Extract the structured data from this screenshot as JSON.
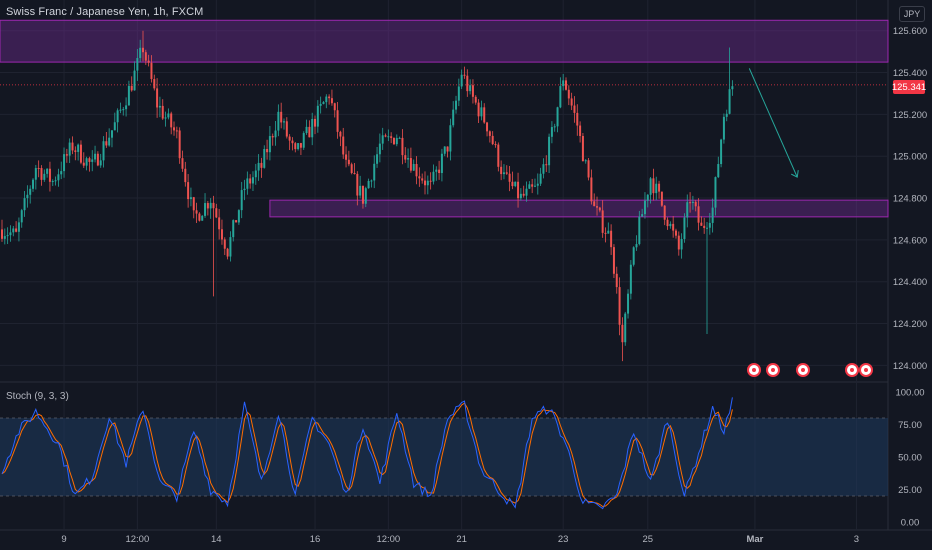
{
  "header": {
    "title": "Swiss Franc / Japanese Yen, 1h, FXCM",
    "currency": "JPY",
    "last_price": "125.341"
  },
  "indicator": {
    "label": "Stoch (9, 3, 3)"
  },
  "colors": {
    "background": "#131722",
    "up_candle": "#26a69a",
    "down_candle": "#ef5350",
    "zone_fill": "#6a2a8c",
    "zone_border": "#9c27b0",
    "stoch_k": "#2962ff",
    "stoch_d": "#ff6d00",
    "stoch_band": "#1e3a5f",
    "arrow": "#26a69a",
    "last_price": "#f23645"
  },
  "chart_data": [
    {
      "type": "candlestick",
      "title": "Swiss Franc / Japanese Yen, 1h, FXCM",
      "y_axis": {
        "ticks": [
          "125.600",
          "125.400",
          "125.200",
          "125.000",
          "124.800",
          "124.600",
          "124.400",
          "124.200",
          "124.000"
        ],
        "ylim": [
          123.93,
          125.68
        ],
        "position": "right"
      },
      "x_axis": {
        "ticks": [
          "9",
          "12:00",
          "14",
          "16",
          "12:00",
          "21",
          "23",
          "25",
          "Mar",
          "3"
        ]
      },
      "zones": [
        {
          "from": 125.45,
          "to": 125.65
        },
        {
          "from": 124.71,
          "to": 124.79
        }
      ],
      "last_price": 125.341,
      "projection_arrow": {
        "from": 125.42,
        "to": 124.9
      },
      "candle_count": 210,
      "price_path": [
        {
          "i": 0,
          "p": 124.65
        },
        {
          "i": 5,
          "p": 124.62
        },
        {
          "i": 12,
          "p": 124.95
        },
        {
          "i": 18,
          "p": 124.88
        },
        {
          "i": 25,
          "p": 125.05
        },
        {
          "i": 32,
          "p": 124.95
        },
        {
          "i": 40,
          "p": 125.15
        },
        {
          "i": 46,
          "p": 125.35
        },
        {
          "i": 50,
          "p": 125.52
        },
        {
          "i": 55,
          "p": 125.25
        },
        {
          "i": 62,
          "p": 125.1
        },
        {
          "i": 68,
          "p": 124.7
        },
        {
          "i": 74,
          "p": 124.8
        },
        {
          "i": 80,
          "p": 124.55
        },
        {
          "i": 86,
          "p": 124.85
        },
        {
          "i": 92,
          "p": 124.95
        },
        {
          "i": 98,
          "p": 125.2
        },
        {
          "i": 104,
          "p": 125.0
        },
        {
          "i": 110,
          "p": 125.15
        },
        {
          "i": 116,
          "p": 125.3
        },
        {
          "i": 122,
          "p": 124.95
        },
        {
          "i": 128,
          "p": 124.8
        },
        {
          "i": 134,
          "p": 125.05
        },
        {
          "i": 140,
          "p": 125.1
        },
        {
          "i": 146,
          "p": 124.95
        },
        {
          "i": 152,
          "p": 124.85
        },
        {
          "i": 158,
          "p": 125.05
        },
        {
          "i": 163,
          "p": 125.4
        },
        {
          "i": 166,
          "p": 125.3
        },
        {
          "i": 172,
          "p": 125.15
        },
        {
          "i": 178,
          "p": 124.9
        },
        {
          "i": 184,
          "p": 124.8
        },
        {
          "i": 190,
          "p": 124.85
        },
        {
          "i": 195,
          "p": 125.1
        },
        {
          "i": 199,
          "p": 125.38
        },
        {
          "i": 204,
          "p": 125.15
        },
        {
          "i": 210,
          "p": 124.75
        },
        {
          "i": 216,
          "p": 124.6
        },
        {
          "i": 220,
          "p": 124.1
        },
        {
          "i": 224,
          "p": 124.55
        },
        {
          "i": 230,
          "p": 124.9
        },
        {
          "i": 236,
          "p": 124.7
        },
        {
          "i": 240,
          "p": 124.55
        },
        {
          "i": 244,
          "p": 124.8
        },
        {
          "i": 248,
          "p": 124.65
        },
        {
          "i": 252,
          "p": 124.75
        },
        {
          "i": 256,
          "p": 125.2
        },
        {
          "i": 259,
          "p": 125.34
        }
      ]
    },
    {
      "type": "line",
      "title": "Stoch (9, 3, 3)",
      "y_axis": {
        "ticks": [
          "100.00",
          "75.00",
          "50.00",
          "25.00",
          "0.00"
        ],
        "ylim": [
          0,
          100
        ],
        "band": [
          20,
          80
        ]
      },
      "series": [
        {
          "name": "%K",
          "color": "#2962ff"
        },
        {
          "name": "%D",
          "color": "#ff6d00"
        }
      ],
      "oscillation": [
        {
          "i": 0,
          "v": 40
        },
        {
          "i": 6,
          "v": 70
        },
        {
          "i": 12,
          "v": 85
        },
        {
          "i": 20,
          "v": 60
        },
        {
          "i": 26,
          "v": 20
        },
        {
          "i": 32,
          "v": 35
        },
        {
          "i": 38,
          "v": 82
        },
        {
          "i": 44,
          "v": 45
        },
        {
          "i": 50,
          "v": 88
        },
        {
          "i": 56,
          "v": 30
        },
        {
          "i": 62,
          "v": 20
        },
        {
          "i": 68,
          "v": 70
        },
        {
          "i": 74,
          "v": 25
        },
        {
          "i": 80,
          "v": 15
        },
        {
          "i": 86,
          "v": 90
        },
        {
          "i": 92,
          "v": 30
        },
        {
          "i": 98,
          "v": 85
        },
        {
          "i": 104,
          "v": 20
        },
        {
          "i": 110,
          "v": 80
        },
        {
          "i": 116,
          "v": 60
        },
        {
          "i": 122,
          "v": 20
        },
        {
          "i": 128,
          "v": 75
        },
        {
          "i": 134,
          "v": 30
        },
        {
          "i": 140,
          "v": 85
        },
        {
          "i": 146,
          "v": 30
        },
        {
          "i": 152,
          "v": 20
        },
        {
          "i": 158,
          "v": 80
        },
        {
          "i": 164,
          "v": 90
        },
        {
          "i": 170,
          "v": 40
        },
        {
          "i": 176,
          "v": 25
        },
        {
          "i": 182,
          "v": 10
        },
        {
          "i": 188,
          "v": 80
        },
        {
          "i": 194,
          "v": 88
        },
        {
          "i": 200,
          "v": 60
        },
        {
          "i": 206,
          "v": 15
        },
        {
          "i": 212,
          "v": 10
        },
        {
          "i": 218,
          "v": 20
        },
        {
          "i": 224,
          "v": 70
        },
        {
          "i": 230,
          "v": 30
        },
        {
          "i": 236,
          "v": 80
        },
        {
          "i": 242,
          "v": 20
        },
        {
          "i": 248,
          "v": 60
        },
        {
          "i": 252,
          "v": 88
        },
        {
          "i": 256,
          "v": 70
        },
        {
          "i": 259,
          "v": 92
        }
      ]
    }
  ]
}
